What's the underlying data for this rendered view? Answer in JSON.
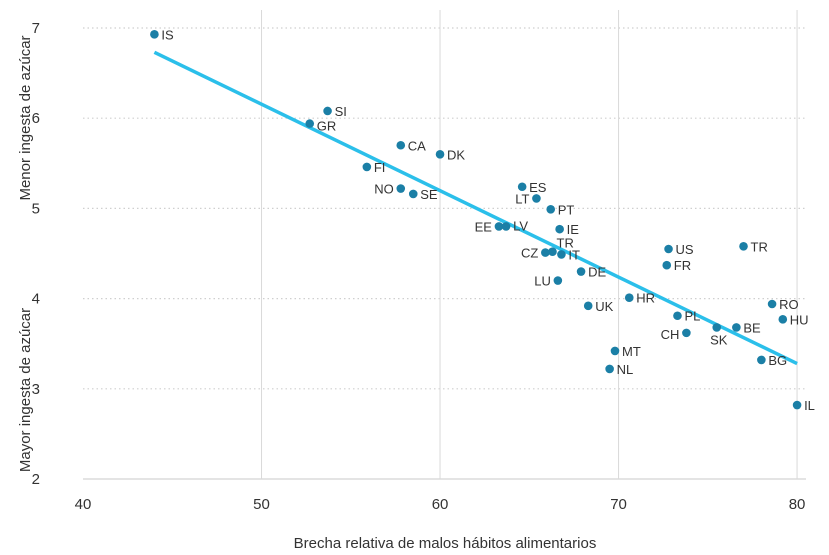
{
  "chart_data": {
    "type": "scatter",
    "title": "",
    "xlabel": "Brecha relativa de malos hábitos alimentarios",
    "ylabel_top": "Menor ingesta de azúcar",
    "ylabel_bottom": "Mayor ingesta de azúcar",
    "xlim": [
      40,
      80.5
    ],
    "ylim": [
      2,
      7
    ],
    "xticks": [
      "40",
      "50",
      "60",
      "70",
      "80"
    ],
    "yticks": [
      "2",
      "3",
      "4",
      "5",
      "6",
      "7"
    ],
    "grid": "vertical-solid, horizontal-dotted",
    "colors": {
      "point": "#1b7fa6",
      "trend": "#2bbfea",
      "grid": "#cfcfcf"
    },
    "points": [
      {
        "label": "IS",
        "x": 44.0,
        "y": 6.93
      },
      {
        "label": "SI",
        "x": 53.7,
        "y": 6.08
      },
      {
        "label": "GR",
        "x": 52.7,
        "y": 5.94
      },
      {
        "label": "CA",
        "x": 57.8,
        "y": 5.7
      },
      {
        "label": "DK",
        "x": 60.0,
        "y": 5.6
      },
      {
        "label": "FI",
        "x": 55.9,
        "y": 5.46
      },
      {
        "label": "NO",
        "x": 57.8,
        "y": 5.22
      },
      {
        "label": "SE",
        "x": 58.5,
        "y": 5.16
      },
      {
        "label": "ES",
        "x": 64.6,
        "y": 5.24
      },
      {
        "label": "LT",
        "x": 65.4,
        "y": 5.11
      },
      {
        "label": "PT",
        "x": 66.2,
        "y": 4.99
      },
      {
        "label": "IE",
        "x": 66.7,
        "y": 4.77
      },
      {
        "label": "EE",
        "x": 63.3,
        "y": 4.8
      },
      {
        "label": "LV",
        "x": 63.7,
        "y": 4.8
      },
      {
        "label": "CZ",
        "x": 65.9,
        "y": 4.51
      },
      {
        "label": "TR",
        "x": 66.3,
        "y": 4.52
      },
      {
        "label": "IT",
        "x": 66.8,
        "y": 4.49
      },
      {
        "label": "DE",
        "x": 67.9,
        "y": 4.3
      },
      {
        "label": "LU",
        "x": 66.6,
        "y": 4.2
      },
      {
        "label": "US",
        "x": 72.8,
        "y": 4.55
      },
      {
        "label": "FR",
        "x": 72.7,
        "y": 4.37
      },
      {
        "label": "TR",
        "x": 77.0,
        "y": 4.58
      },
      {
        "label": "UK",
        "x": 68.3,
        "y": 3.92
      },
      {
        "label": "HR",
        "x": 70.6,
        "y": 4.01
      },
      {
        "label": "PL",
        "x": 73.3,
        "y": 3.81
      },
      {
        "label": "CH",
        "x": 73.8,
        "y": 3.62
      },
      {
        "label": "SK",
        "x": 75.5,
        "y": 3.68
      },
      {
        "label": "BE",
        "x": 76.6,
        "y": 3.68
      },
      {
        "label": "RO",
        "x": 78.6,
        "y": 3.94
      },
      {
        "label": "HU",
        "x": 79.2,
        "y": 3.77
      },
      {
        "label": "BG",
        "x": 78.0,
        "y": 3.32
      },
      {
        "label": "MT",
        "x": 69.8,
        "y": 3.42
      },
      {
        "label": "NL",
        "x": 69.5,
        "y": 3.22
      },
      {
        "label": "IL",
        "x": 80.0,
        "y": 2.82
      }
    ],
    "trendline": {
      "x": [
        44.0,
        80.0
      ],
      "y": [
        6.73,
        3.28
      ]
    }
  }
}
